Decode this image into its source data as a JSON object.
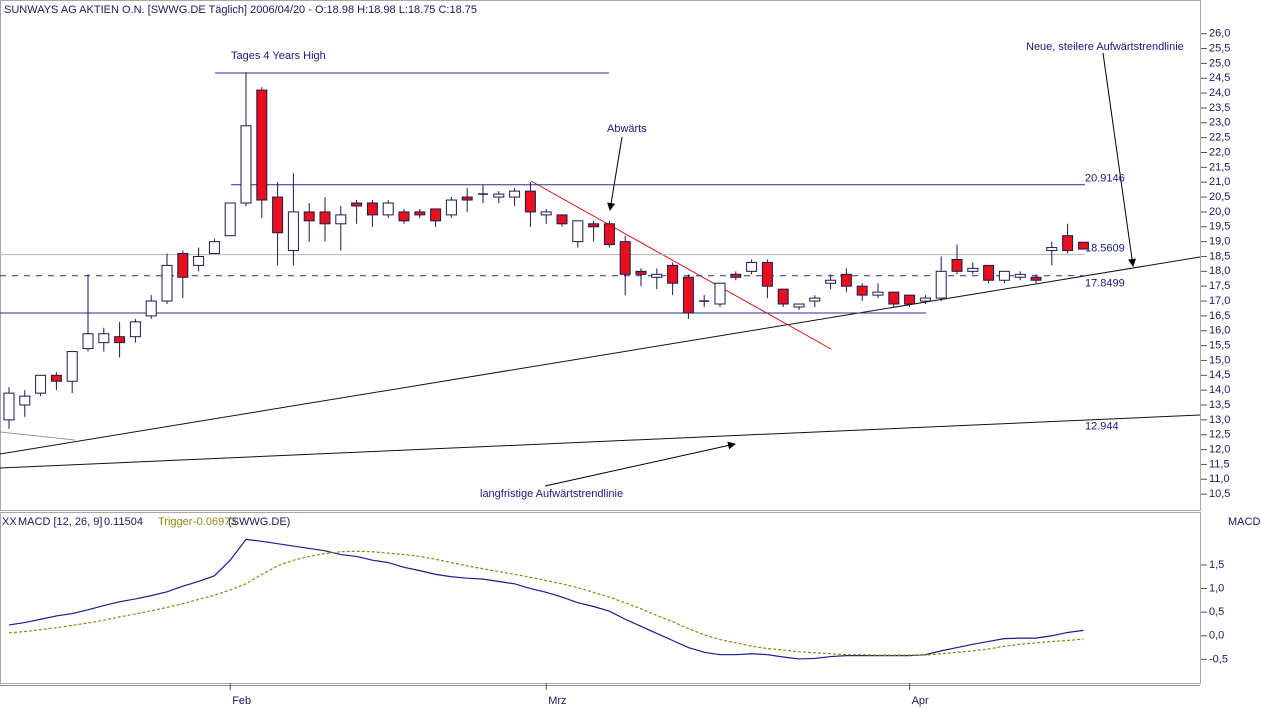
{
  "chart_data": [
    {
      "type": "candlestick",
      "title": "SUNWAYS AG AKTIEN O.N. [SWWG.DE  Täglich] 2006/04/20 - O:18.98 H:18.98 L:18.75 C:18.75",
      "categories": [
        null,
        null,
        null,
        null,
        null,
        null,
        null,
        null,
        null,
        null,
        null,
        null,
        null,
        null,
        "Feb",
        null,
        null,
        null,
        null,
        null,
        null,
        null,
        null,
        null,
        null,
        null,
        null,
        null,
        null,
        null,
        null,
        null,
        null,
        null,
        "Mrz",
        null,
        null,
        null,
        null,
        null,
        null,
        null,
        null,
        null,
        null,
        null,
        null,
        null,
        null,
        null,
        null,
        null,
        null,
        null,
        null,
        null,
        null,
        "Apr",
        null,
        null,
        null,
        null,
        null,
        null,
        null,
        null,
        null,
        null,
        null
      ],
      "open": [
        13.0,
        13.5,
        13.9,
        14.5,
        14.3,
        15.4,
        15.6,
        15.8,
        15.8,
        16.5,
        17.0,
        18.6,
        18.2,
        18.6,
        19.2,
        20.3,
        24.1,
        20.5,
        18.7,
        20.0,
        20.0,
        19.6,
        20.3,
        20.3,
        19.9,
        20.0,
        20.0,
        20.1,
        19.9,
        20.5,
        20.6,
        20.5,
        20.5,
        20.7,
        19.9,
        19.9,
        19.0,
        19.6,
        19.6,
        19.0,
        18.0,
        17.8,
        18.2,
        17.8,
        17.0,
        16.9,
        17.9,
        18.0,
        18.3,
        17.4,
        16.8,
        17.0,
        17.6,
        17.9,
        17.5,
        17.2,
        17.3,
        17.2,
        17.0,
        17.1,
        18.4,
        18.0,
        18.2,
        17.7,
        17.8,
        17.8,
        18.7,
        19.2,
        18.98
      ],
      "high": [
        14.1,
        14.0,
        14.5,
        14.6,
        15.3,
        17.9,
        16.1,
        16.3,
        16.4,
        17.2,
        18.6,
        18.7,
        18.8,
        19.1,
        20.3,
        24.7,
        24.2,
        21.0,
        21.3,
        20.3,
        20.5,
        20.2,
        20.4,
        20.4,
        20.4,
        20.1,
        20.1,
        20.1,
        20.5,
        20.8,
        20.9,
        20.7,
        20.8,
        21.0,
        20.1,
        19.9,
        19.7,
        19.7,
        19.7,
        19.2,
        18.1,
        18.1,
        18.3,
        17.9,
        17.2,
        17.6,
        18.0,
        18.4,
        18.4,
        17.4,
        16.9,
        17.2,
        17.9,
        18.1,
        17.6,
        17.6,
        17.3,
        17.2,
        17.2,
        18.5,
        18.9,
        18.3,
        18.2,
        18.0,
        18.0,
        17.9,
        19.0,
        19.6,
        18.98
      ],
      "low": [
        12.7,
        13.1,
        13.8,
        14.0,
        13.9,
        15.3,
        15.3,
        15.1,
        15.6,
        16.4,
        16.9,
        17.1,
        18.0,
        18.6,
        19.2,
        20.2,
        19.8,
        18.2,
        18.2,
        19.0,
        19.0,
        18.7,
        19.6,
        19.5,
        19.8,
        19.6,
        19.8,
        19.5,
        19.8,
        20.0,
        20.3,
        20.3,
        20.2,
        19.5,
        19.6,
        19.5,
        18.8,
        19.0,
        18.8,
        17.2,
        17.5,
        17.4,
        17.2,
        16.4,
        16.8,
        16.8,
        17.7,
        17.9,
        17.1,
        16.8,
        16.7,
        16.8,
        17.4,
        17.3,
        17.0,
        17.1,
        16.8,
        16.8,
        16.9,
        17.0,
        17.9,
        17.9,
        17.6,
        17.6,
        17.7,
        17.6,
        18.2,
        18.6,
        18.75
      ],
      "close": [
        13.9,
        13.8,
        14.5,
        14.3,
        15.3,
        15.9,
        15.9,
        15.6,
        16.3,
        17.0,
        18.2,
        17.8,
        18.5,
        19.0,
        20.3,
        22.9,
        20.4,
        19.3,
        20.0,
        19.7,
        19.6,
        19.9,
        20.2,
        19.9,
        20.3,
        19.7,
        19.9,
        19.7,
        20.4,
        20.4,
        20.6,
        20.6,
        20.7,
        20.0,
        20.0,
        19.6,
        19.7,
        19.5,
        18.9,
        17.9,
        17.9,
        17.9,
        17.6,
        16.6,
        17.0,
        17.6,
        17.8,
        18.3,
        17.5,
        16.9,
        16.9,
        17.1,
        17.7,
        17.5,
        17.2,
        17.3,
        16.9,
        16.9,
        17.1,
        18.0,
        18.0,
        18.1,
        17.7,
        18.0,
        17.9,
        17.7,
        18.8,
        18.7,
        18.75
      ],
      "up_color": "#ffffff",
      "down_color": "#e8101c",
      "ylim": [
        10.0,
        27.1
      ],
      "yticks": [
        {
          "value": 26.0,
          "label": "26,0"
        },
        {
          "value": 25.5,
          "label": "25,5"
        },
        {
          "value": 25.0,
          "label": "25,0"
        },
        {
          "value": 24.5,
          "label": "24,5"
        },
        {
          "value": 24.0,
          "label": "24,0"
        },
        {
          "value": 23.5,
          "label": "23,5"
        },
        {
          "value": 23.0,
          "label": "23,0"
        },
        {
          "value": 22.5,
          "label": "22,5"
        },
        {
          "value": 22.0,
          "label": "22,0"
        },
        {
          "value": 21.5,
          "label": "21,5"
        },
        {
          "value": 21.0,
          "label": "21,0"
        },
        {
          "value": 20.5,
          "label": "20,5"
        },
        {
          "value": 20.0,
          "label": "20,0"
        },
        {
          "value": 19.5,
          "label": "19,5"
        },
        {
          "value": 19.0,
          "label": "19,0"
        },
        {
          "value": 18.5,
          "label": "18,5"
        },
        {
          "value": 18.0,
          "label": "18,0"
        },
        {
          "value": 17.5,
          "label": "17,5"
        },
        {
          "value": 17.0,
          "label": "17,0"
        },
        {
          "value": 16.5,
          "label": "16,5"
        },
        {
          "value": 16.0,
          "label": "16,0"
        },
        {
          "value": 15.5,
          "label": "15,5"
        },
        {
          "value": 15.0,
          "label": "15,0"
        },
        {
          "value": 14.5,
          "label": "14,5"
        },
        {
          "value": 14.0,
          "label": "14,0"
        },
        {
          "value": 13.5,
          "label": "13,5"
        },
        {
          "value": 13.0,
          "label": "13,0"
        },
        {
          "value": 12.5,
          "label": "12,5"
        },
        {
          "value": 12.0,
          "label": "12,0"
        },
        {
          "value": 11.5,
          "label": "11,5"
        },
        {
          "value": 11.0,
          "label": "11,0"
        },
        {
          "value": 10.5,
          "label": "10,5"
        }
      ],
      "levels": [
        20.9146,
        18.5609,
        17.8499
      ],
      "trendline_values": [
        12.944
      ],
      "annotations": [
        "Tages 4 Years High",
        "Abwärts",
        "Neue, steilere Aufwärtstrendlinie",
        "langfristige Aufwärtstrendlinie"
      ]
    },
    {
      "type": "line",
      "prefix": "XX",
      "symbol": "(SWWG.DE)",
      "y_label": "MACD",
      "series": [
        {
          "name": "MACD [12, 26, 9]",
          "color": "#1c1c8c",
          "values": [
            0.23,
            0.28,
            0.35,
            0.42,
            0.47,
            0.55,
            0.64,
            0.72,
            0.78,
            0.85,
            0.93,
            1.05,
            1.15,
            1.27,
            1.6,
            2.04,
            2.0,
            1.95,
            1.9,
            1.85,
            1.8,
            1.72,
            1.68,
            1.6,
            1.55,
            1.45,
            1.38,
            1.3,
            1.25,
            1.22,
            1.2,
            1.15,
            1.1,
            1.0,
            0.92,
            0.82,
            0.7,
            0.62,
            0.52,
            0.35,
            0.2,
            0.05,
            -0.1,
            -0.25,
            -0.35,
            -0.4,
            -0.4,
            -0.38,
            -0.4,
            -0.45,
            -0.49,
            -0.48,
            -0.44,
            -0.42,
            -0.42,
            -0.42,
            -0.42,
            -0.42,
            -0.4,
            -0.32,
            -0.25,
            -0.18,
            -0.12,
            -0.06,
            -0.05,
            -0.05,
            0.0,
            0.07,
            0.11504
          ]
        },
        {
          "name": "Trigger",
          "color": "#8a8a10",
          "values": [
            0.06,
            0.09,
            0.13,
            0.17,
            0.22,
            0.27,
            0.33,
            0.4,
            0.46,
            0.53,
            0.6,
            0.68,
            0.77,
            0.86,
            0.97,
            1.1,
            1.3,
            1.48,
            1.6,
            1.68,
            1.74,
            1.78,
            1.79,
            1.78,
            1.75,
            1.72,
            1.68,
            1.62,
            1.55,
            1.48,
            1.42,
            1.36,
            1.3,
            1.24,
            1.17,
            1.1,
            1.02,
            0.92,
            0.82,
            0.7,
            0.57,
            0.43,
            0.3,
            0.15,
            0.02,
            -0.08,
            -0.15,
            -0.22,
            -0.27,
            -0.3,
            -0.34,
            -0.36,
            -0.38,
            -0.4,
            -0.4,
            -0.41,
            -0.41,
            -0.41,
            -0.41,
            -0.38,
            -0.35,
            -0.32,
            -0.28,
            -0.22,
            -0.18,
            -0.15,
            -0.12,
            -0.1,
            -0.06973
          ]
        }
      ],
      "ylim": [
        -1.0,
        2.6
      ],
      "yticks": [
        {
          "value": 1.5,
          "label": "1,5"
        },
        {
          "value": 1.0,
          "label": "1,0"
        },
        {
          "value": 0.5,
          "label": "0,5"
        },
        {
          "value": 0.0,
          "label": "0,0"
        },
        {
          "value": -0.5,
          "label": "-0,5"
        }
      ]
    }
  ]
}
